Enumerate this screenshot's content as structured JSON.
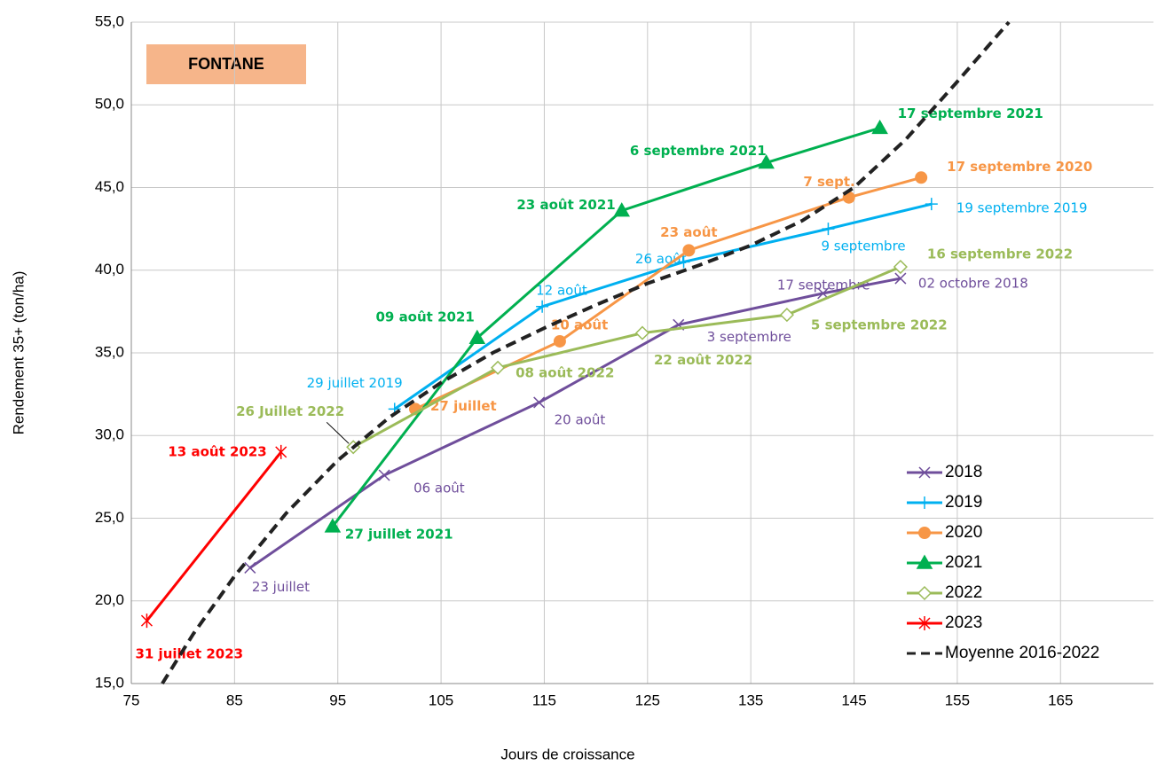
{
  "chart_data": {
    "type": "line",
    "annotation": "FONTANE",
    "x_label": "Jours de croissance",
    "y_label": "Rendement 35+ (ton/ha)",
    "xlim": [
      75,
      174
    ],
    "xticks": [
      75,
      85,
      95,
      105,
      115,
      125,
      135,
      145,
      155,
      165
    ],
    "ylim": [
      15,
      55
    ],
    "yticks": [
      {
        "value": 15,
        "label": "15,0"
      },
      {
        "value": 20,
        "label": "20,0"
      },
      {
        "value": 25,
        "label": "25,0"
      },
      {
        "value": 30,
        "label": "30,0"
      },
      {
        "value": 35,
        "label": "35,0"
      },
      {
        "value": 40,
        "label": "40,0"
      },
      {
        "value": 45,
        "label": "45,0"
      },
      {
        "value": 50,
        "label": "50,0"
      },
      {
        "value": 55,
        "label": "55,0"
      }
    ],
    "grid": true,
    "legend": "lower right",
    "series": [
      {
        "name": "2018",
        "color": "#6f4e9b",
        "marker": "x",
        "x": [
          86.5,
          99.5,
          114.5,
          128,
          142,
          149.5
        ],
        "values": [
          22,
          27.6,
          32,
          36.7,
          38.6,
          39.5
        ],
        "labels": [
          "23 juillet",
          "06 août",
          "20 août",
          "3 septembre",
          "17 septembre",
          "02 octobre 2018"
        ]
      },
      {
        "name": "2019",
        "color": "#00b0f0",
        "marker": "plus",
        "x": [
          100.5,
          114.8,
          128.5,
          142.5,
          152.5
        ],
        "values": [
          31.6,
          37.8,
          40.5,
          42.5,
          44
        ],
        "labels": [
          "29 juillet 2019",
          "12 août",
          "26 août",
          "9 septembre",
          "19 septembre 2019"
        ]
      },
      {
        "name": "2020",
        "color": "#f79646",
        "marker": "circle",
        "x": [
          102.5,
          116.5,
          129,
          144.5,
          151.5
        ],
        "values": [
          31.6,
          35.7,
          41.2,
          44.4,
          45.6
        ],
        "labels": [
          "27 juillet",
          "10 août",
          "23 août",
          "7 sept.",
          "17 septembre 2020"
        ]
      },
      {
        "name": "2021",
        "color": "#00b050",
        "marker": "triangle",
        "x": [
          94.5,
          108.5,
          122.5,
          136.5,
          147.5
        ],
        "values": [
          24.5,
          35.9,
          43.6,
          46.5,
          48.6
        ],
        "labels": [
          "27 juillet 2021",
          "09 août 2021",
          "23 août 2021",
          "6 septembre 2021",
          "17 septembre 2021"
        ]
      },
      {
        "name": "2022",
        "color": "#9bbb59",
        "marker": "diamond",
        "x": [
          96.5,
          110.5,
          124.5,
          138.5,
          149.5
        ],
        "values": [
          29.3,
          34.1,
          36.2,
          37.3,
          40.2
        ],
        "labels": [
          "26 Juillet 2022",
          "08 août 2022",
          "22 août 2022",
          "5 septembre 2022",
          "16 septembre 2022"
        ]
      },
      {
        "name": "2023",
        "color": "#ff0000",
        "marker": "star",
        "x": [
          76.5,
          89.5
        ],
        "values": [
          18.8,
          29
        ],
        "labels": [
          "31 juillet 2023",
          "13 août 2023"
        ]
      },
      {
        "name": "Moyenne 2016-2022",
        "color": "#222222",
        "dashed": true,
        "x": [
          78,
          81,
          85,
          90,
          95,
          100,
          105,
          110,
          115,
          120,
          125,
          130,
          135,
          140,
          145,
          150,
          155,
          160
        ],
        "values": [
          15,
          18,
          21.5,
          25.3,
          28.5,
          31.1,
          33.2,
          35,
          36.5,
          37.9,
          39.2,
          40.3,
          41.5,
          43,
          45,
          47.9,
          51.4,
          55
        ]
      }
    ]
  }
}
